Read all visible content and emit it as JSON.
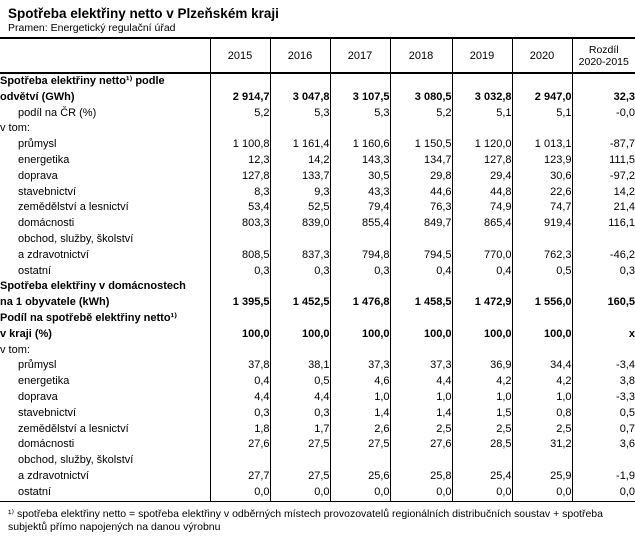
{
  "title": "Spotřeba elektřiny netto v Plzeňském kraji",
  "source": "Pramen: Energetický regulační úřad",
  "colors": {
    "text": "#000000",
    "background": "#ffffff",
    "border": "#000000"
  },
  "table": {
    "columns": [
      "2015",
      "2016",
      "2017",
      "2018",
      "2019",
      "2020"
    ],
    "diff_column": {
      "line1": "Rozdíl",
      "line2": "2020-2015"
    },
    "rows": [
      {
        "label": "Spotřeba elektřiny netto¹⁾ podle",
        "indent": 0,
        "bold": true,
        "values": []
      },
      {
        "label": "odvětví (GWh)",
        "indent": 0,
        "bold": true,
        "values": [
          "2 914,7",
          "3 047,8",
          "3 107,5",
          "3 080,5",
          "3 032,8",
          "2 947,0",
          "32,3"
        ]
      },
      {
        "label": "podíl na ČR (%)",
        "indent": 1,
        "bold": false,
        "values": [
          "5,2",
          "5,3",
          "5,3",
          "5,2",
          "5,1",
          "5,1",
          "-0,0"
        ]
      },
      {
        "label": "v tom:",
        "indent": 0,
        "bold": false,
        "values": []
      },
      {
        "label": "průmysl",
        "indent": 1,
        "bold": false,
        "values": [
          "1 100,8",
          "1 161,4",
          "1 160,6",
          "1 150,5",
          "1 120,0",
          "1 013,1",
          "-87,7"
        ]
      },
      {
        "label": "energetika",
        "indent": 1,
        "bold": false,
        "values": [
          "12,3",
          "14,2",
          "143,3",
          "134,7",
          "127,8",
          "123,9",
          "111,5"
        ]
      },
      {
        "label": "doprava",
        "indent": 1,
        "bold": false,
        "values": [
          "127,8",
          "133,7",
          "30,5",
          "29,8",
          "29,4",
          "30,6",
          "-97,2"
        ]
      },
      {
        "label": "stavebnictví",
        "indent": 1,
        "bold": false,
        "values": [
          "8,3",
          "9,3",
          "43,3",
          "44,6",
          "44,8",
          "22,6",
          "14,2"
        ]
      },
      {
        "label": "zemědělství a lesnictví",
        "indent": 1,
        "bold": false,
        "values": [
          "53,4",
          "52,5",
          "79,4",
          "76,3",
          "74,9",
          "74,7",
          "21,4"
        ]
      },
      {
        "label": "domácnosti",
        "indent": 1,
        "bold": false,
        "values": [
          "803,3",
          "839,0",
          "855,4",
          "849,7",
          "865,4",
          "919,4",
          "116,1"
        ]
      },
      {
        "label": "obchod, služby, školství",
        "indent": 1,
        "bold": false,
        "values": []
      },
      {
        "label": "a zdravotnictví",
        "indent": 1,
        "bold": false,
        "values": [
          "808,5",
          "837,3",
          "794,8",
          "794,5",
          "770,0",
          "762,3",
          "-46,2"
        ]
      },
      {
        "label": "ostatní",
        "indent": 1,
        "bold": false,
        "values": [
          "0,3",
          "0,3",
          "0,3",
          "0,4",
          "0,4",
          "0,5",
          "0,3"
        ]
      },
      {
        "label": "Spotřeba elektřiny v domácnostech",
        "indent": 0,
        "bold": true,
        "values": []
      },
      {
        "label": "na 1 obyvatele (kWh)",
        "indent": 0,
        "bold": true,
        "values": [
          "1 395,5",
          "1 452,5",
          "1 476,8",
          "1 458,5",
          "1 472,9",
          "1 556,0",
          "160,5"
        ]
      },
      {
        "label": "Podíl na spotřebě elektřiny netto¹⁾",
        "indent": 0,
        "bold": true,
        "values": []
      },
      {
        "label": "v kraji (%)",
        "indent": 0,
        "bold": true,
        "values": [
          "100,0",
          "100,0",
          "100,0",
          "100,0",
          "100,0",
          "100,0",
          "x"
        ]
      },
      {
        "label": "v tom:",
        "indent": 0,
        "bold": false,
        "values": []
      },
      {
        "label": "průmysl",
        "indent": 1,
        "bold": false,
        "values": [
          "37,8",
          "38,1",
          "37,3",
          "37,3",
          "36,9",
          "34,4",
          "-3,4"
        ]
      },
      {
        "label": "energetika",
        "indent": 1,
        "bold": false,
        "values": [
          "0,4",
          "0,5",
          "4,6",
          "4,4",
          "4,2",
          "4,2",
          "3,8"
        ]
      },
      {
        "label": "doprava",
        "indent": 1,
        "bold": false,
        "values": [
          "4,4",
          "4,4",
          "1,0",
          "1,0",
          "1,0",
          "1,0",
          "-3,3"
        ]
      },
      {
        "label": "stavebnictví",
        "indent": 1,
        "bold": false,
        "values": [
          "0,3",
          "0,3",
          "1,4",
          "1,4",
          "1,5",
          "0,8",
          "0,5"
        ]
      },
      {
        "label": "zemědělství a lesnictví",
        "indent": 1,
        "bold": false,
        "values": [
          "1,8",
          "1,7",
          "2,6",
          "2,5",
          "2,5",
          "2,5",
          "0,7"
        ]
      },
      {
        "label": "domácnosti",
        "indent": 1,
        "bold": false,
        "values": [
          "27,6",
          "27,5",
          "27,5",
          "27,6",
          "28,5",
          "31,2",
          "3,6"
        ]
      },
      {
        "label": "obchod, služby, školství",
        "indent": 1,
        "bold": false,
        "values": []
      },
      {
        "label": "a zdravotnictví",
        "indent": 1,
        "bold": false,
        "values": [
          "27,7",
          "27,5",
          "25,6",
          "25,8",
          "25,4",
          "25,9",
          "-1,9"
        ]
      },
      {
        "label": "ostatní",
        "indent": 1,
        "bold": false,
        "values": [
          "0,0",
          "0,0",
          "0,0",
          "0,0",
          "0,0",
          "0,0",
          "0,0"
        ]
      }
    ]
  },
  "footnote": "¹⁾ spotřeba elektřiny netto = spotřeba elektřiny v odběrných místech provozovatelů regionálních distribučních soustav + spotřeba subjektů přímo napojených na danou výrobnu"
}
